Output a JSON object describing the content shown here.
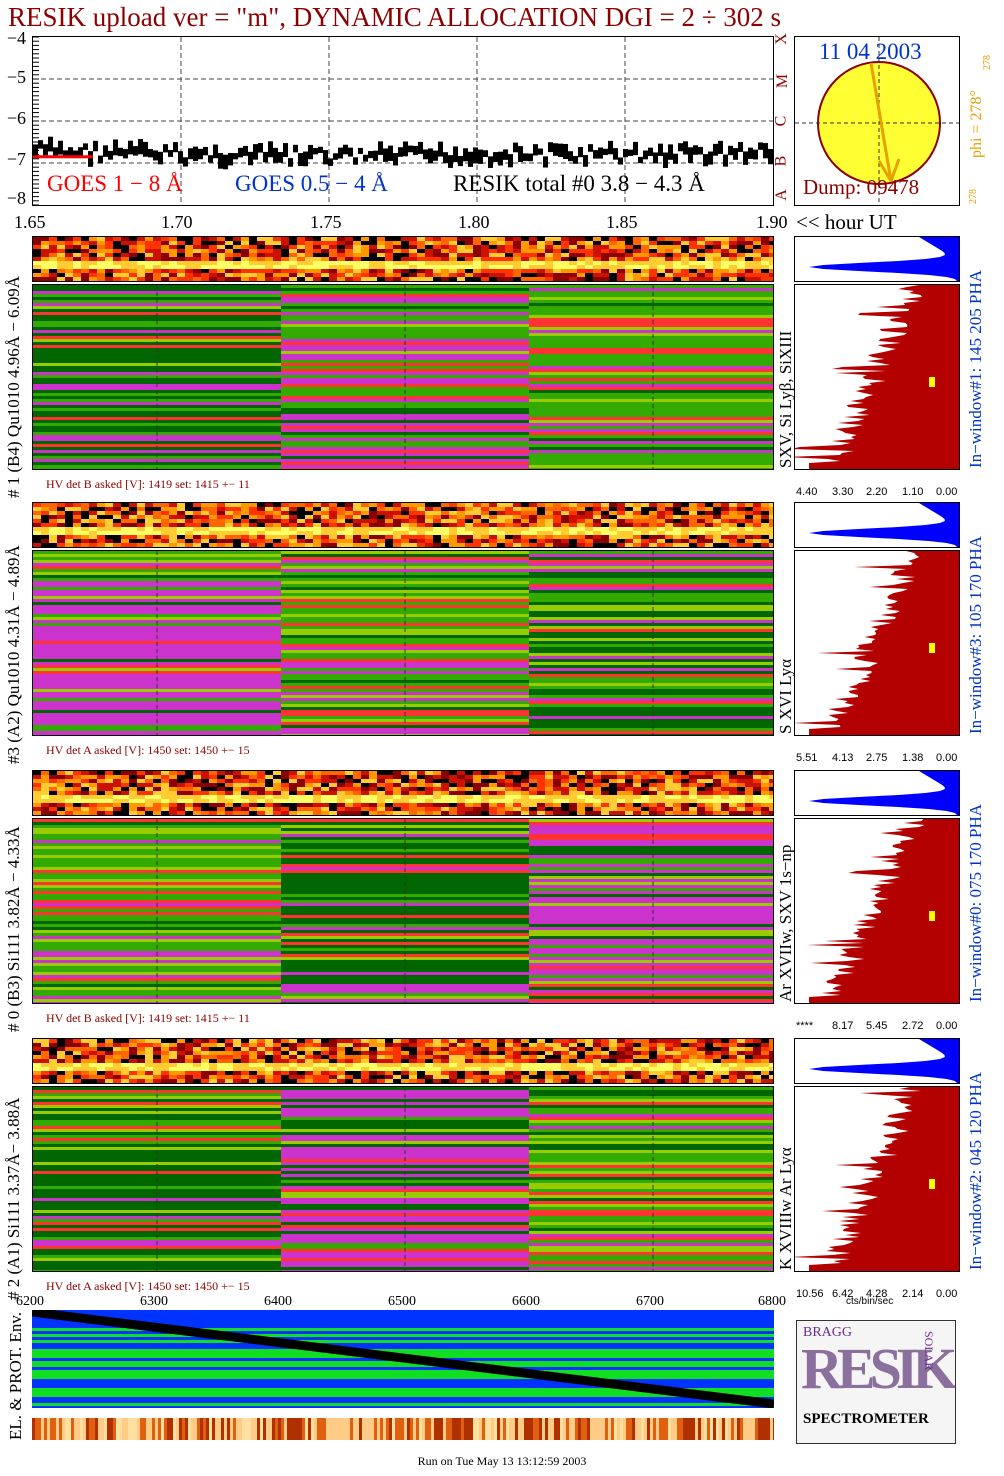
{
  "title": "RESIK upload ver = \"m\", DYNAMIC ALLOCATION  DGI =   2 ÷ 302 s",
  "colors": {
    "title": "#8b0000",
    "goes18": "#ff0000",
    "goes054": "#0033cc",
    "resik": "#000000",
    "sun": "#ffff33",
    "arrow": "#e6a000",
    "histo": "#b30000",
    "histoTop": "#0000ff"
  },
  "lightcurve": {
    "yticks": [
      "−4",
      "−5",
      "−6",
      "−7",
      "−8"
    ],
    "xticks": [
      "1.65",
      "1.70",
      "1.75",
      "1.80",
      "1.85",
      "1.90"
    ],
    "xunit": "<< hour UT",
    "legend": {
      "goes18": "GOES 1 − 8 Å",
      "goes054": "GOES 0.5 − 4 Å",
      "resik": "RESIK total #0  3.8 − 4.3 Å"
    },
    "classes": [
      "X",
      "M",
      "C",
      "B",
      "A"
    ]
  },
  "sun": {
    "date": "11 04 2003",
    "dump": "Dump: 09478",
    "phi": "phi = 278°",
    "phi_sup": "278",
    "phi_small": "278"
  },
  "channels": [
    {
      "label": "# 1 (B4) Qu1010 4.96Å − 6.09Å",
      "lines": "SXV, Si Lyβ, SiXIII",
      "window": "In−window#1:  145 205 PHA",
      "hv": "HV det B asked [V]:  1419 set:  1415  +−   11",
      "ticks": [
        "4.40",
        "3.30",
        "2.20",
        "1.10",
        "0.00"
      ]
    },
    {
      "label": "#3 (A2) Qu1010  4.31Å − 4.89Å",
      "lines": "S XVI Lyα",
      "window": "In−window#3:  105 170 PHA",
      "hv": "HV det A asked [V]:  1450 set:  1450  +−   15",
      "ticks": [
        "5.51",
        "4.13",
        "2.75",
        "1.38",
        "0.00"
      ]
    },
    {
      "label": "# 0 (B3) Si111  3.82Å − 4.33Å",
      "lines": "Ar XVIIw,  SXV 1s−np",
      "window": "In−window#0:  075 170 PHA",
      "hv": "HV det B asked [V]:  1419 set:  1415  +−   11",
      "ticks": [
        "****",
        "8.17",
        "5.45",
        "2.72",
        "0.00"
      ]
    },
    {
      "label": "# 2 (A1) Si111  3.37Å− 3.88Å",
      "lines": "K XVIIIw  Ar Lyα",
      "window": "In−window#2:  045 120 PHA",
      "hv": "HV det A asked [V]:  1450 set:  1450  +−   15",
      "ticks": [
        "10.56",
        "6.42",
        "4.28",
        "2.14",
        "0.00"
      ]
    }
  ],
  "sideunit": "cts/bin/sec",
  "bottom": {
    "xticks": [
      "6200",
      "6300",
      "6400",
      "6500",
      "6600",
      "6700",
      "6800"
    ],
    "label": "EL. & PROT. Env."
  },
  "logo": {
    "letters": "RESIK",
    "bragg": "BRAGG",
    "solar": "SOLAR",
    "spectrometer": "SPECTROMETER"
  },
  "footer": "Run on Tue May 13 13:12:59 2003",
  "chart_data": {
    "type": "line",
    "title": "RESIK upload ver = \"m\", DYNAMIC ALLOCATION  DGI =   2 ÷ 302 s",
    "xlabel": "<< hour UT",
    "xlim": [
      1.65,
      1.9
    ],
    "ylim": [
      -8,
      -4
    ],
    "series": [
      {
        "name": "RESIK total #0  3.8 − 4.3 Å",
        "x": [
          1.65,
          1.7,
          1.75,
          1.8,
          1.85,
          1.9
        ],
        "values": [
          -6.7,
          -6.8,
          -6.85,
          -6.8,
          -6.8,
          -6.75
        ]
      }
    ]
  }
}
